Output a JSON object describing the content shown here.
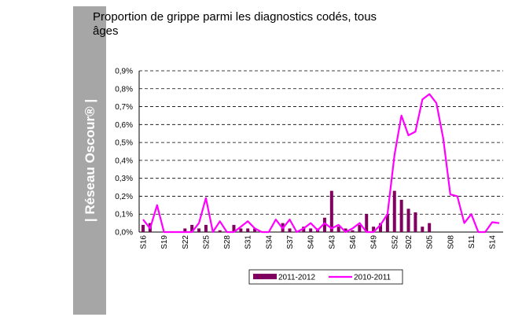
{
  "banner": "| Réseau Oscour® |",
  "chart_data": {
    "type": "combo",
    "title": "Proportion de grippe parmi les diagnostics codés, tous âges",
    "categories": [
      "S16",
      null,
      null,
      "S19",
      null,
      null,
      "S22",
      null,
      null,
      "S25",
      null,
      null,
      "S28",
      null,
      null,
      "S31",
      null,
      null,
      "S34",
      null,
      null,
      "S37",
      null,
      null,
      "S40",
      null,
      null,
      "S43",
      null,
      null,
      "S46",
      null,
      null,
      "S49",
      null,
      null,
      "S52",
      null,
      "S02",
      null,
      null,
      "S05",
      null,
      null,
      "S08",
      null,
      null,
      "S11",
      null,
      null,
      "S14",
      null
    ],
    "series": [
      {
        "name": "2011-2012",
        "color": "#800060",
        "type": "bar",
        "values": [
          0.04,
          0.05,
          0,
          0,
          0,
          0,
          0.02,
          0.04,
          0.02,
          0.04,
          0,
          0.01,
          0,
          0.04,
          0.02,
          0.02,
          0.02,
          0,
          0,
          0,
          0.05,
          0.02,
          0,
          0.03,
          0.02,
          0.02,
          0.08,
          0.23,
          0.03,
          0.02,
          0.01,
          0.04,
          0.1,
          0.03,
          0.05,
          0.1,
          0.23,
          0.18,
          0.13,
          0.11,
          0.03,
          0.05,
          null,
          null,
          null,
          null,
          null,
          null,
          null,
          null,
          null,
          null
        ]
      },
      {
        "name": "2010-2011",
        "color": "#ff00ff",
        "type": "line",
        "values": [
          0.07,
          0.02,
          0.15,
          0,
          0,
          0,
          0,
          0,
          0.05,
          0.19,
          0,
          0.06,
          0,
          0,
          0.03,
          0.06,
          0.02,
          0,
          0,
          0.07,
          0.02,
          0.07,
          0,
          0.02,
          0.05,
          0.01,
          0.05,
          0.02,
          0.04,
          0,
          0.02,
          0.05,
          0,
          0,
          0.04,
          0.1,
          0.43,
          0.65,
          0.54,
          0.56,
          0.74,
          0.77,
          0.72,
          0.52,
          0.21,
          0.2,
          0.05,
          0.1,
          0,
          0,
          0.055,
          0.05
        ]
      }
    ],
    "ylim": [
      0,
      0.9
    ],
    "yticks": [
      {
        "value": 0,
        "label": "0,0%"
      },
      {
        "value": 0.1,
        "label": "0,1%"
      },
      {
        "value": 0.2,
        "label": "0,2%"
      },
      {
        "value": 0.3,
        "label": "0,3%"
      },
      {
        "value": 0.4,
        "label": "0,4%"
      },
      {
        "value": 0.5,
        "label": "0,5%"
      },
      {
        "value": 0.6,
        "label": "0,6%"
      },
      {
        "value": 0.7,
        "label": "0,7%"
      },
      {
        "value": 0.8,
        "label": "0,8%"
      },
      {
        "value": 0.9,
        "label": "0,9%"
      }
    ],
    "grid": true
  }
}
